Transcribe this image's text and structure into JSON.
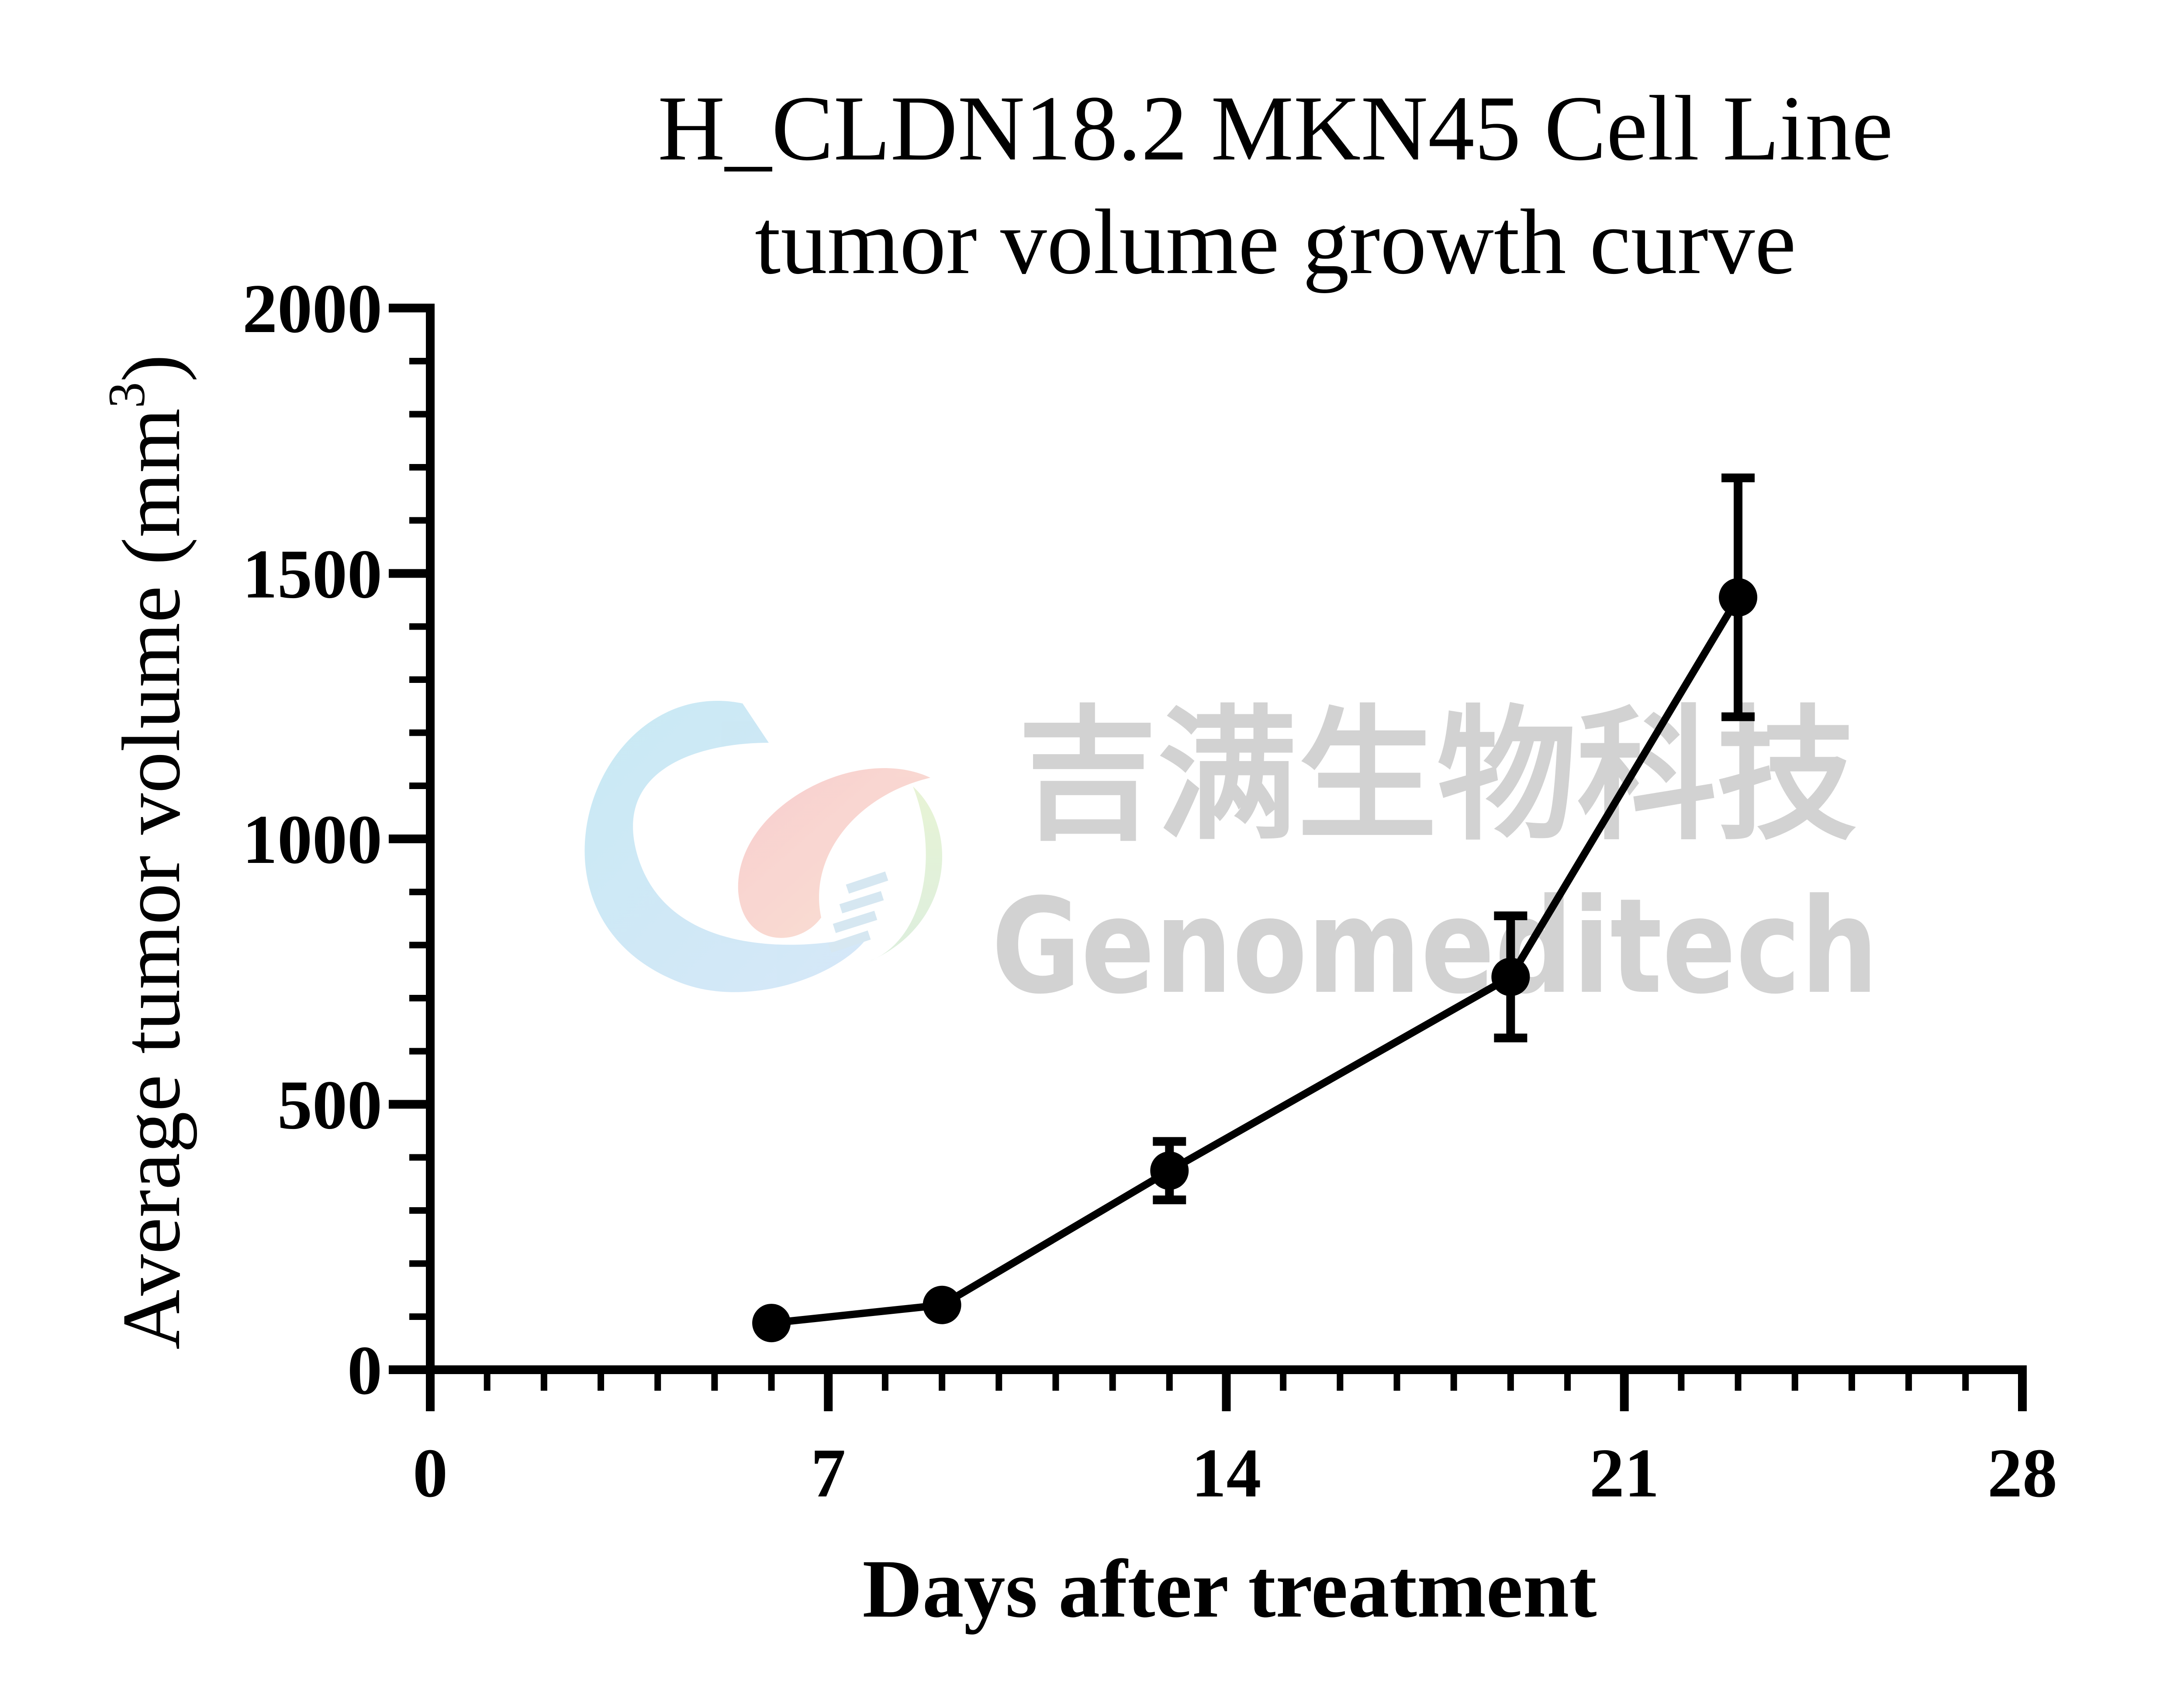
{
  "chart_data": {
    "type": "line",
    "title_line1": "H_CLDN18.2 MKN45 Cell Line",
    "title_line2": "tumor volume growth curve",
    "xlabel": "Days after treatment",
    "ylabel": "Average tumor volume (mm",
    "ylabel_superscript": "3",
    "ylabel_close": ")",
    "xlim": [
      0,
      28
    ],
    "ylim": [
      0,
      2000
    ],
    "x_ticks": [
      0,
      7,
      14,
      21,
      28
    ],
    "x_tick_labels": [
      "0",
      "7",
      "14",
      "21",
      "28"
    ],
    "y_ticks": [
      0,
      500,
      1000,
      1500,
      2000
    ],
    "y_tick_labels": [
      "0",
      "500",
      "1000",
      "1500",
      "2000"
    ],
    "grid": false,
    "series": [
      {
        "x": [
          6,
          9,
          13,
          19,
          23
        ],
        "y": [
          88,
          122,
          375,
          740,
          1455
        ],
        "error": [
          0,
          0,
          55,
          115,
          225
        ],
        "color": "#000000"
      }
    ]
  },
  "watermark": {
    "text_cn": "吉满生物科技",
    "text_en": "Genomeditech",
    "logo": "genomeditech-logo"
  }
}
